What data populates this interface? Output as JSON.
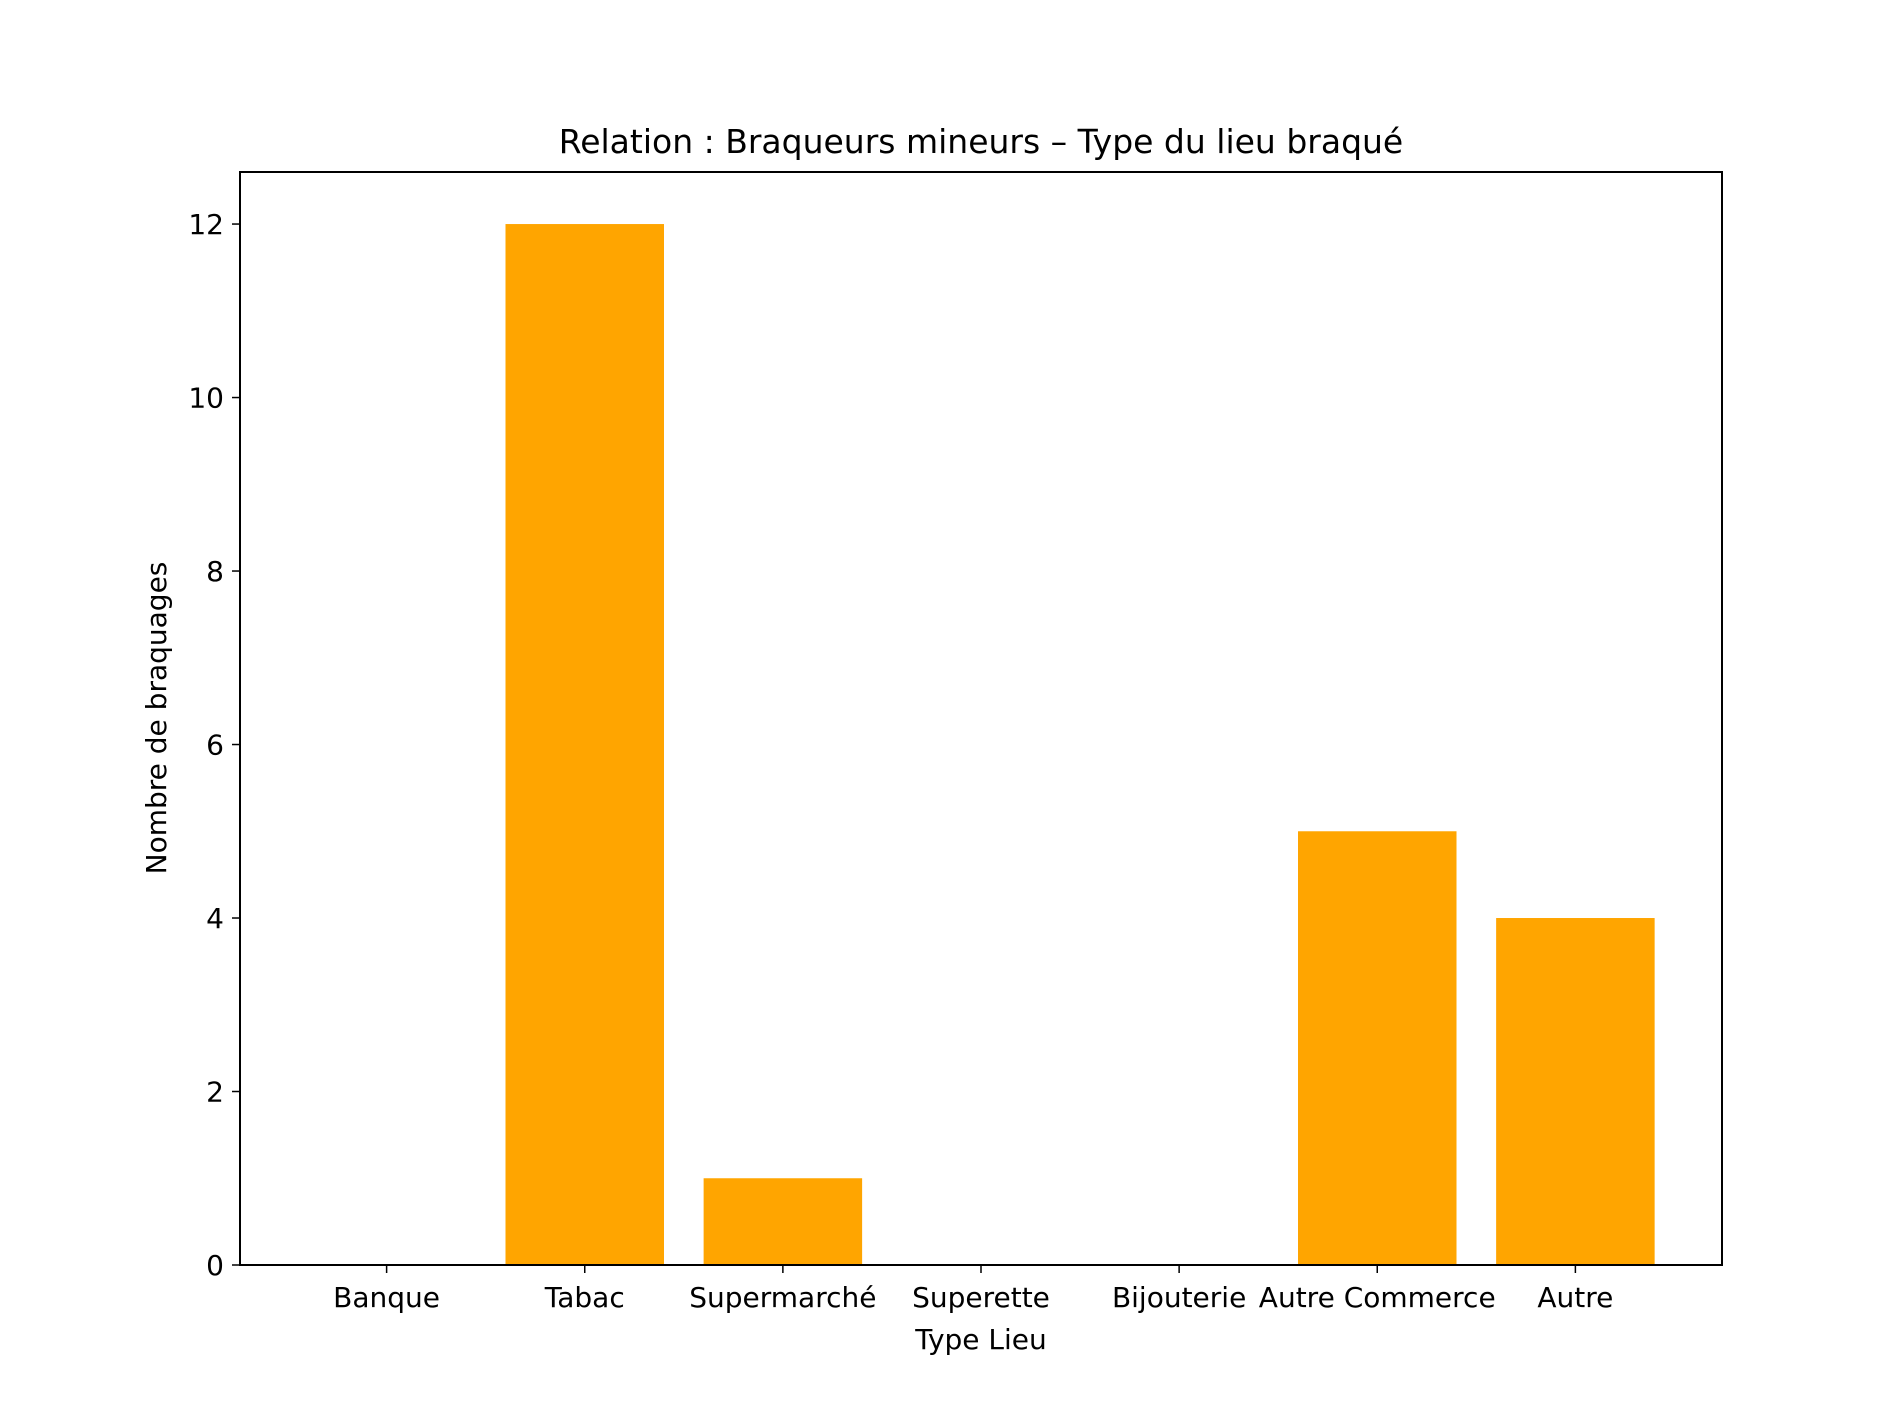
{
  "chart_data": {
    "type": "bar",
    "title": "Relation : Braqueurs mineurs – Type du lieu braqué",
    "xlabel": "Type Lieu",
    "ylabel": "Nombre de braquages",
    "categories": [
      "Banque",
      "Tabac",
      "Supermarché",
      "Superette",
      "Bijouterie",
      "Autre Commerce",
      "Autre"
    ],
    "values": [
      0,
      12,
      1,
      0,
      0,
      5,
      4
    ],
    "ylim": [
      0,
      12.6
    ],
    "yticks": [
      0,
      2,
      4,
      6,
      8,
      10,
      12
    ],
    "bar_color": "#ffa500",
    "grid": false,
    "legend": "none"
  }
}
